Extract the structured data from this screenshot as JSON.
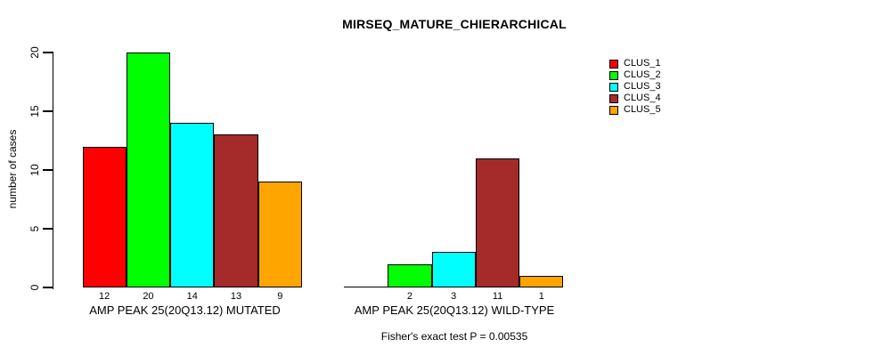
{
  "chart_data": {
    "type": "bar",
    "title": "MIRSEQ_MATURE_CHIERARCHICAL",
    "ylabel": "number of cases",
    "xlabel": "",
    "ylim": [
      0,
      20
    ],
    "yticks": [
      "0",
      "5",
      "10",
      "15",
      "20"
    ],
    "grid": false,
    "legend_position": "right",
    "series": [
      "CLUS_1",
      "CLUS_2",
      "CLUS_3",
      "CLUS_4",
      "CLUS_5"
    ],
    "series_colors": [
      "#FF0000",
      "#00FF00",
      "#00FFFF",
      "#A52A2A",
      "#FFA500"
    ],
    "groups": [
      {
        "label": "AMP PEAK 25(20Q13.12) MUTATED",
        "values": [
          12,
          20,
          14,
          13,
          9
        ],
        "value_labels": [
          "12",
          "20",
          "14",
          "13",
          "9"
        ]
      },
      {
        "label": "AMP PEAK 25(20Q13.12) WILD-TYPE",
        "values": [
          0,
          2,
          3,
          11,
          1
        ],
        "value_labels": [
          "",
          "2",
          "3",
          "11",
          "1"
        ]
      }
    ],
    "annotation": "Fisher's exact test P = 0.00535"
  },
  "legend": {
    "items": [
      {
        "label": "CLUS_1",
        "color": "#FF0000"
      },
      {
        "label": "CLUS_2",
        "color": "#00FF00"
      },
      {
        "label": "CLUS_3",
        "color": "#00FFFF"
      },
      {
        "label": "CLUS_4",
        "color": "#A52A2A"
      },
      {
        "label": "CLUS_5",
        "color": "#FFA500"
      }
    ]
  }
}
